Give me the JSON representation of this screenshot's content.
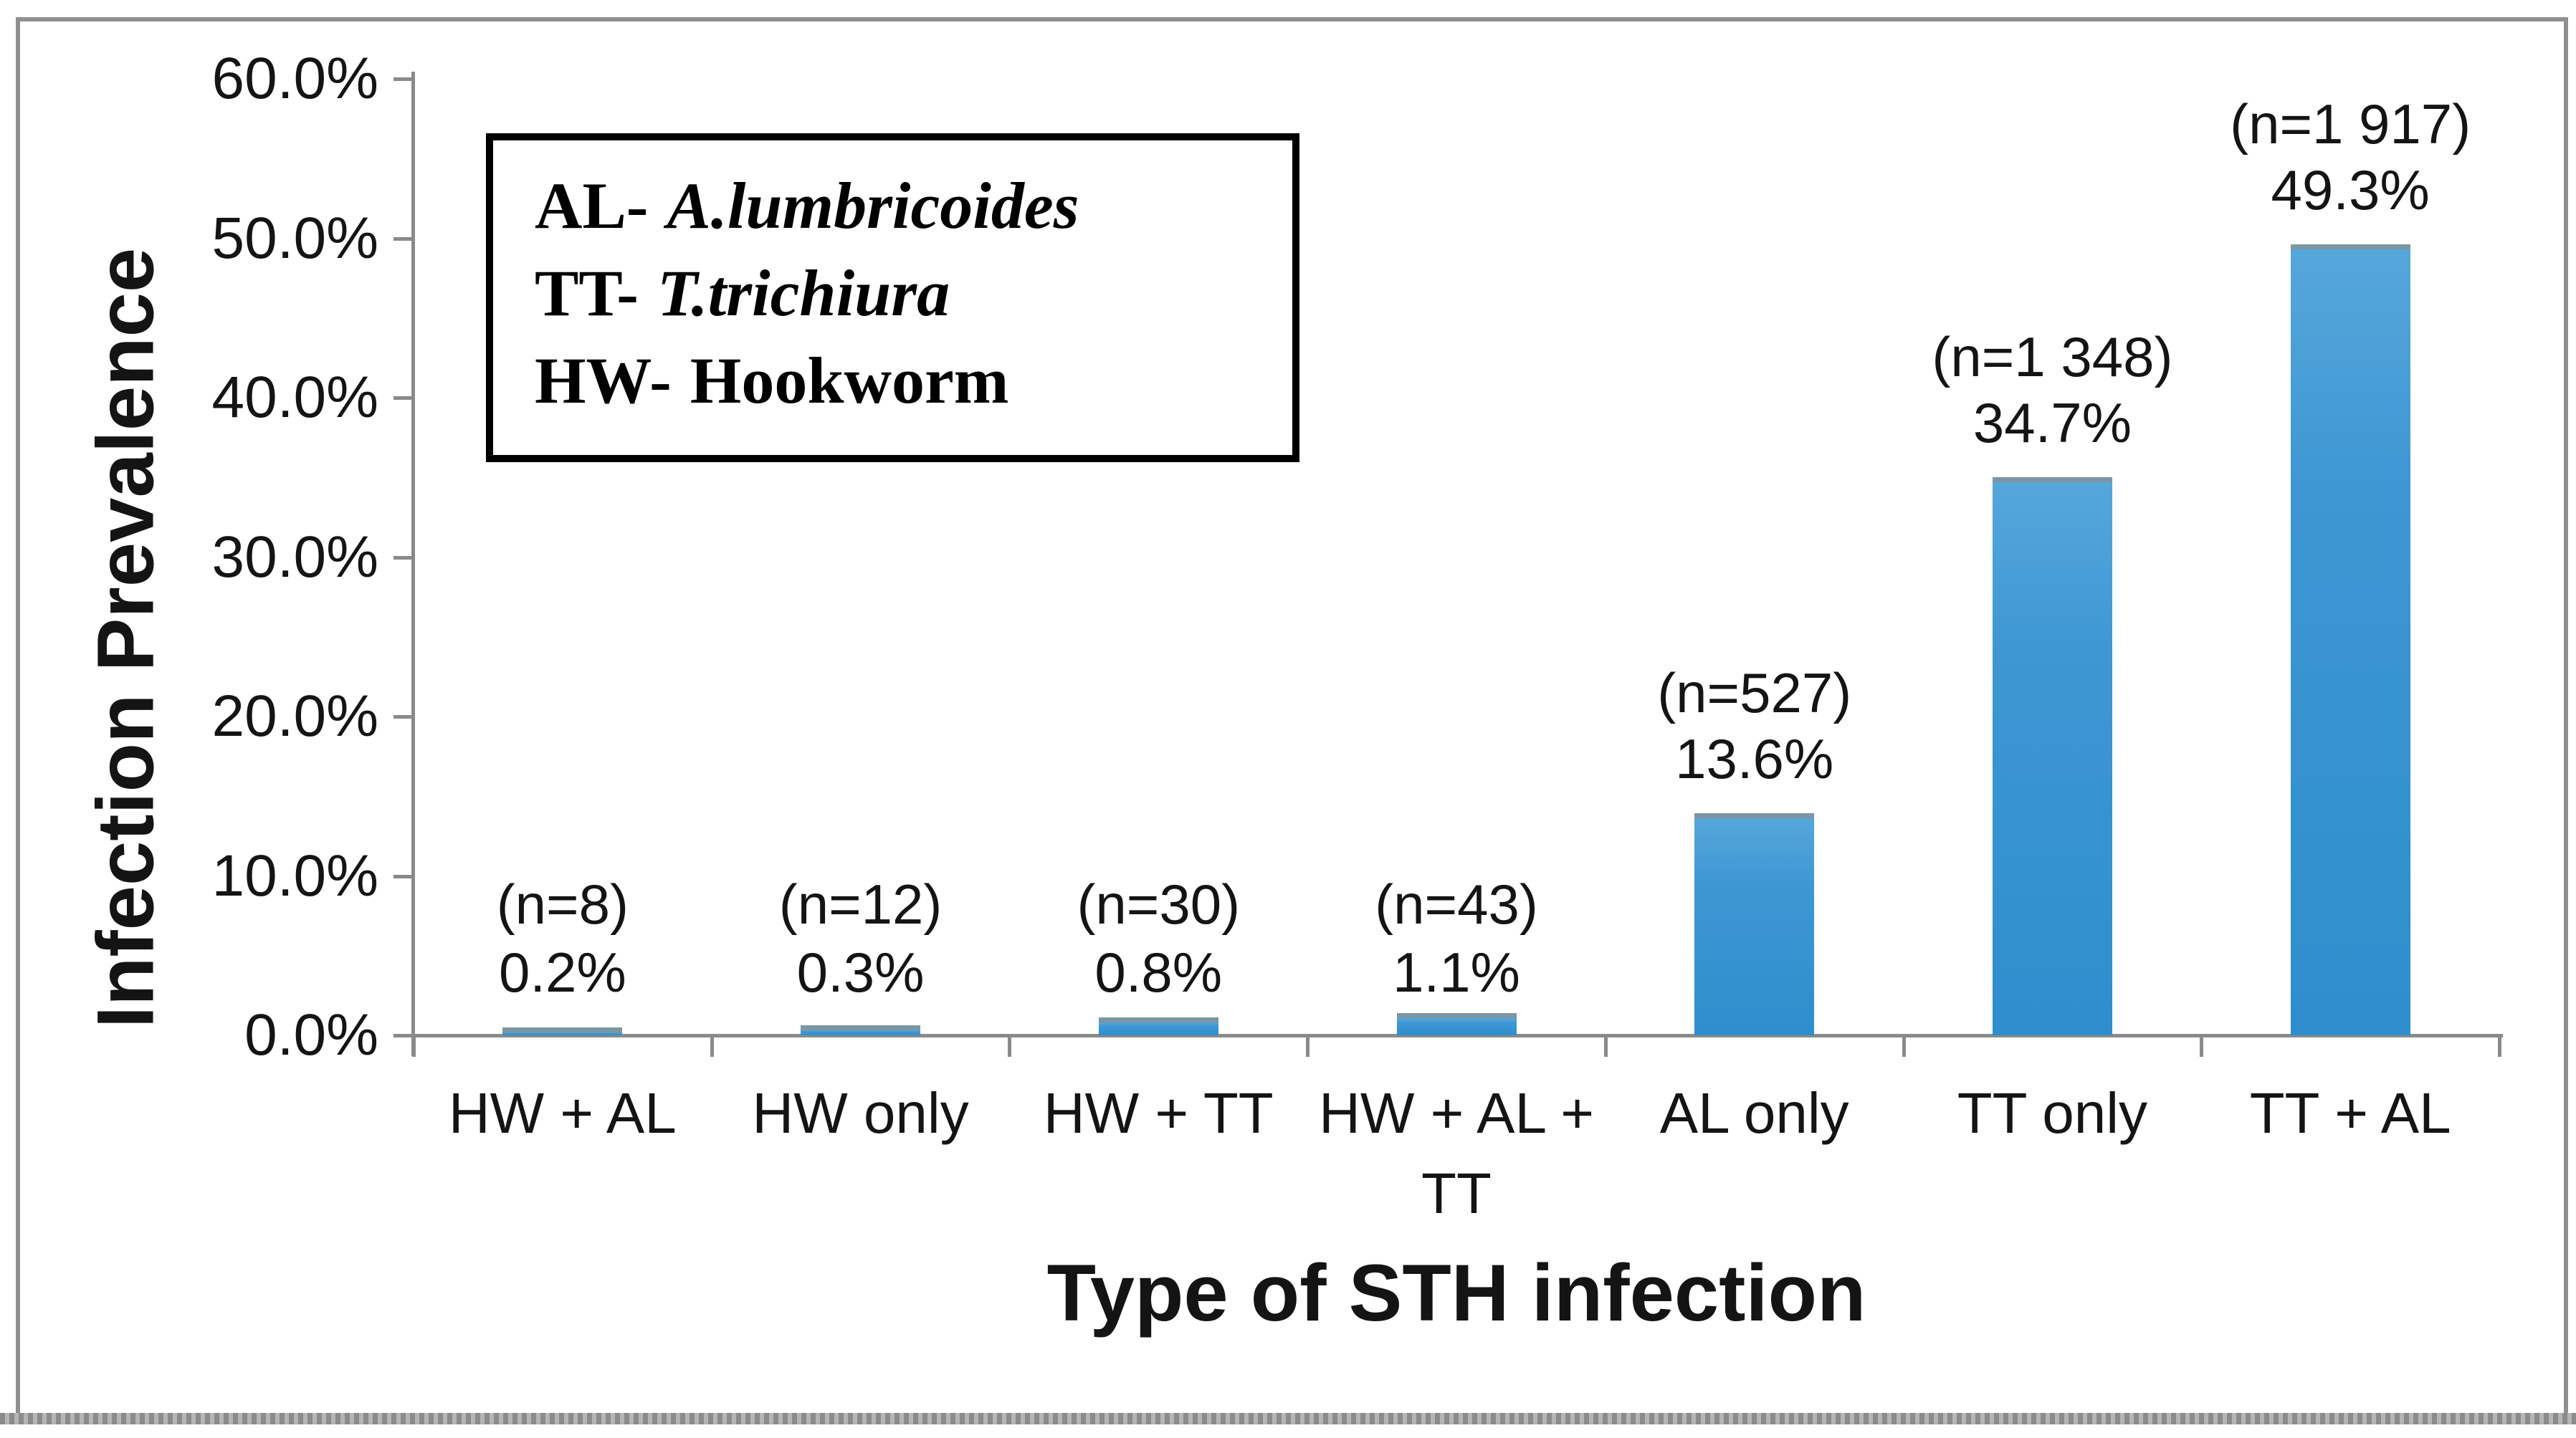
{
  "figure": {
    "bar_color": "#3594d2",
    "bar_gradient_top": "#55a7db",
    "bar_cap_color": "#7c96a2",
    "axis_color": "#8a8a8a",
    "frame_color": "#8f8f8f",
    "text_color": "#141414",
    "background": "#ffffff"
  },
  "chart_data": {
    "type": "bar",
    "title": "",
    "xlabel": "Type of STH infection",
    "ylabel": "Infection Prevalence",
    "categories": [
      "HW + AL",
      "HW only",
      "HW + TT",
      "HW + AL + TT",
      "AL only",
      "TT only",
      "TT + AL"
    ],
    "categories_display": [
      "HW + AL",
      "HW only",
      "HW + TT",
      "HW + AL +\nTT",
      "AL only",
      "TT only",
      "TT + AL"
    ],
    "values": [
      0.2,
      0.3,
      0.8,
      1.1,
      13.6,
      34.7,
      49.3
    ],
    "counts": [
      8,
      12,
      30,
      43,
      527,
      1348,
      1917
    ],
    "count_labels": [
      "(n=8)",
      "(n=12)",
      "(n=30)",
      "(n=43)",
      "(n=527)",
      "(n=1 348)",
      "(n=1 917)"
    ],
    "value_labels": [
      "0.2%",
      "0.3%",
      "0.8%",
      "1.1%",
      "13.6%",
      "34.7%",
      "49.3%"
    ],
    "yticks": [
      "0.0%",
      "10.0%",
      "20.0%",
      "30.0%",
      "40.0%",
      "50.0%",
      "60.0%"
    ],
    "ylim": [
      0,
      60
    ],
    "grid": false,
    "legend_position": "upper-left-inside",
    "legend": [
      {
        "abbr": "AL-",
        "name": "A.lumbricoides",
        "italic": true
      },
      {
        "abbr": "TT-",
        "name": "T.trichiura",
        "italic": true
      },
      {
        "abbr": "HW-",
        "name": "Hookworm",
        "italic": false
      }
    ]
  }
}
